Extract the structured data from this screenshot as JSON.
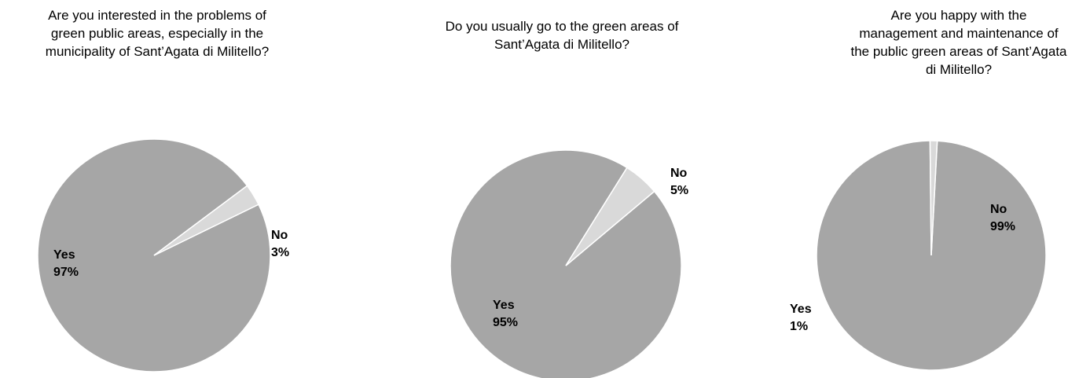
{
  "colors": {
    "main_slice": "#a6a6a6",
    "minor_slice": "#d9d9d9",
    "edge": "#ffffff",
    "text": "#000000"
  },
  "chart_data": [
    {
      "type": "pie",
      "title": "Are you interested in the problems of\ngreen public areas, especially in the\nmunicipality of Sant’Agata di Militello?",
      "slices": [
        {
          "label": "Yes",
          "value": 97,
          "value_label": "97%"
        },
        {
          "label": "No",
          "value": 3,
          "value_label": "3%"
        }
      ]
    },
    {
      "type": "pie",
      "title": "Do you usually go to the green areas of\nSant’Agata di Militello?",
      "slices": [
        {
          "label": "Yes",
          "value": 95,
          "value_label": "95%"
        },
        {
          "label": "No",
          "value": 5,
          "value_label": "5%"
        }
      ]
    },
    {
      "type": "pie",
      "title": "Are you happy with the\nmanagement and maintenance of\nthe public green areas of Sant’Agata\ndi Militello?",
      "slices": [
        {
          "label": "No",
          "value": 99,
          "value_label": "99%"
        },
        {
          "label": "Yes",
          "value": 1,
          "value_label": "1%"
        }
      ]
    }
  ]
}
